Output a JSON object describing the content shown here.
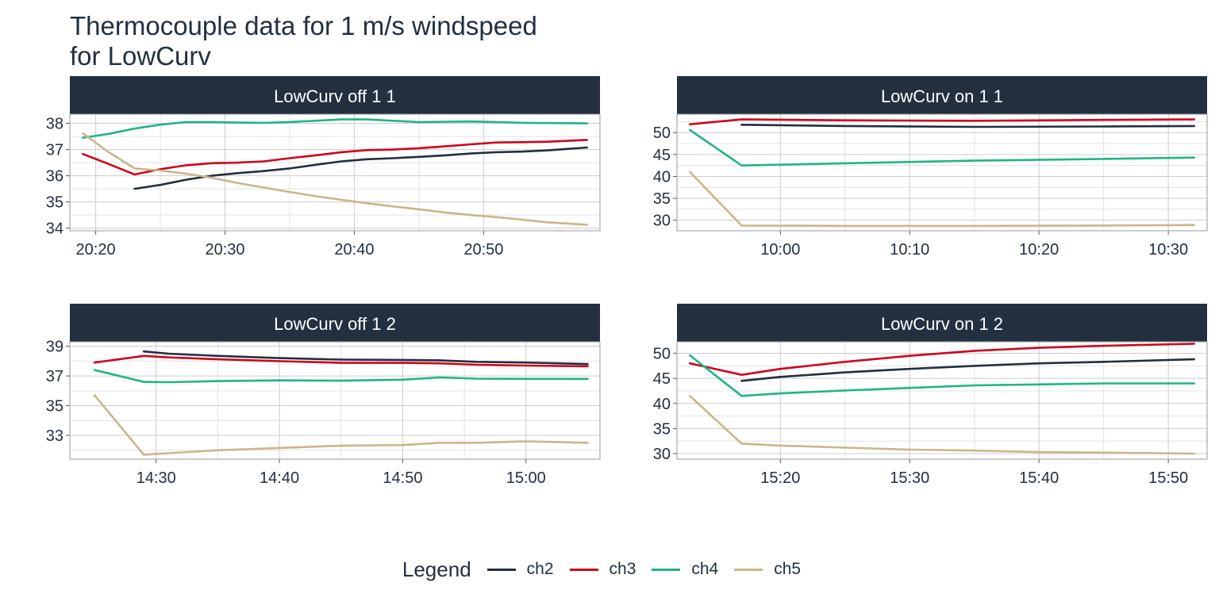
{
  "title": "Thermocouple data for 1 m/s windspeed\nfor LowCurv",
  "legend": {
    "title": "Legend",
    "items": [
      {
        "name": "ch2",
        "color": "#222f3e"
      },
      {
        "name": "ch3",
        "color": "#d0021b"
      },
      {
        "name": "ch4",
        "color": "#1fb589"
      },
      {
        "name": "ch5",
        "color": "#c9b68a"
      }
    ]
  },
  "chart_data": [
    {
      "type": "line",
      "title": "LowCurv off 1 1",
      "xlim": [
        "20:18",
        "20:59"
      ],
      "ylim": [
        33.9,
        38.35
      ],
      "xticks": [
        "20:20",
        "20:30",
        "20:40",
        "20:50"
      ],
      "yticks": [
        34,
        35,
        36,
        37,
        38
      ],
      "series": [
        {
          "name": "ch2",
          "x": [
            "20:23",
            "20:25",
            "20:27",
            "20:29",
            "20:31",
            "20:33",
            "20:35",
            "20:37",
            "20:39",
            "20:41",
            "20:43",
            "20:45",
            "20:47",
            "20:49",
            "20:51",
            "20:53",
            "20:55",
            "20:58"
          ],
          "y": [
            35.5,
            35.65,
            35.85,
            36.0,
            36.1,
            36.18,
            36.28,
            36.42,
            36.55,
            36.63,
            36.67,
            36.72,
            36.78,
            36.85,
            36.9,
            36.92,
            36.97,
            37.08
          ]
        },
        {
          "name": "ch3",
          "x": [
            "20:19",
            "20:21",
            "20:23",
            "20:25",
            "20:27",
            "20:29",
            "20:31",
            "20:33",
            "20:35",
            "20:37",
            "20:39",
            "20:41",
            "20:43",
            "20:45",
            "20:47",
            "20:49",
            "20:51",
            "20:53",
            "20:55",
            "20:58"
          ],
          "y": [
            36.83,
            36.45,
            36.05,
            36.25,
            36.4,
            36.48,
            36.5,
            36.55,
            36.67,
            36.78,
            36.9,
            36.98,
            37.0,
            37.05,
            37.12,
            37.2,
            37.27,
            37.28,
            37.3,
            37.37
          ]
        },
        {
          "name": "ch4",
          "x": [
            "20:19",
            "20:21",
            "20:23",
            "20:25",
            "20:27",
            "20:29",
            "20:31",
            "20:33",
            "20:35",
            "20:37",
            "20:39",
            "20:41",
            "20:43",
            "20:45",
            "20:47",
            "20:49",
            "20:51",
            "20:53",
            "20:55",
            "20:58"
          ],
          "y": [
            37.45,
            37.6,
            37.8,
            37.95,
            38.05,
            38.05,
            38.03,
            38.02,
            38.05,
            38.1,
            38.15,
            38.15,
            38.1,
            38.05,
            38.06,
            38.07,
            38.05,
            38.02,
            38.01,
            38.0
          ]
        },
        {
          "name": "ch5",
          "x": [
            "20:19",
            "20:21",
            "20:23",
            "20:25",
            "20:27",
            "20:29",
            "20:31",
            "20:33",
            "20:35",
            "20:37",
            "20:39",
            "20:41",
            "20:43",
            "20:45",
            "20:47",
            "20:49",
            "20:51",
            "20:53",
            "20:55",
            "20:58"
          ],
          "y": [
            37.62,
            36.9,
            36.28,
            36.2,
            36.08,
            35.92,
            35.72,
            35.55,
            35.38,
            35.22,
            35.08,
            34.95,
            34.83,
            34.72,
            34.6,
            34.5,
            34.42,
            34.32,
            34.22,
            34.13
          ]
        }
      ]
    },
    {
      "type": "line",
      "title": "LowCurv on 1 1",
      "xlim": [
        "09:52",
        "10:33"
      ],
      "ylim": [
        27.6,
        54.2
      ],
      "xticks": [
        "10:00",
        "10:10",
        "10:20",
        "10:30"
      ],
      "yticks": [
        30,
        35,
        40,
        45,
        50
      ],
      "series": [
        {
          "name": "ch2",
          "x": [
            "09:57",
            "10:05",
            "10:15",
            "10:25",
            "10:32"
          ],
          "y": [
            51.8,
            51.5,
            51.3,
            51.4,
            51.5
          ]
        },
        {
          "name": "ch3",
          "x": [
            "09:53",
            "09:57",
            "10:05",
            "10:15",
            "10:25",
            "10:32"
          ],
          "y": [
            51.9,
            53.0,
            52.8,
            52.7,
            52.9,
            53.0
          ]
        },
        {
          "name": "ch4",
          "x": [
            "09:53",
            "09:57",
            "10:05",
            "10:15",
            "10:25",
            "10:32"
          ],
          "y": [
            50.6,
            42.5,
            43.0,
            43.6,
            44.0,
            44.3
          ]
        },
        {
          "name": "ch5",
          "x": [
            "09:53",
            "09:57",
            "10:05",
            "10:15",
            "10:25",
            "10:32"
          ],
          "y": [
            41.0,
            28.8,
            28.7,
            28.7,
            28.8,
            28.9
          ]
        }
      ]
    },
    {
      "type": "line",
      "title": "LowCurv off 1 2",
      "xlim": [
        "14:23",
        "15:06"
      ],
      "ylim": [
        31.4,
        39.3
      ],
      "xticks": [
        "14:30",
        "14:40",
        "14:50",
        "15:00"
      ],
      "yticks": [
        33,
        35,
        37,
        39
      ],
      "series": [
        {
          "name": "ch2",
          "x": [
            "14:29",
            "14:31",
            "14:35",
            "14:40",
            "14:45",
            "14:50",
            "14:53",
            "14:56",
            "15:00",
            "15:05"
          ],
          "y": [
            38.65,
            38.5,
            38.35,
            38.2,
            38.1,
            38.08,
            38.05,
            37.95,
            37.9,
            37.8
          ]
        },
        {
          "name": "ch3",
          "x": [
            "14:25",
            "14:29",
            "14:31",
            "14:35",
            "14:40",
            "14:45",
            "14:50",
            "14:53",
            "14:56",
            "15:00",
            "15:05"
          ],
          "y": [
            37.9,
            38.35,
            38.25,
            38.12,
            38.0,
            37.88,
            37.88,
            37.85,
            37.75,
            37.7,
            37.65
          ]
        },
        {
          "name": "ch4",
          "x": [
            "14:25",
            "14:29",
            "14:31",
            "14:35",
            "14:40",
            "14:45",
            "14:50",
            "14:53",
            "14:56",
            "15:00",
            "15:05"
          ],
          "y": [
            37.4,
            36.6,
            36.58,
            36.65,
            36.7,
            36.68,
            36.75,
            36.9,
            36.82,
            36.8,
            36.8
          ]
        },
        {
          "name": "ch5",
          "x": [
            "14:25",
            "14:29",
            "14:31",
            "14:35",
            "14:40",
            "14:45",
            "14:50",
            "14:53",
            "14:56",
            "15:00",
            "15:05"
          ],
          "y": [
            35.7,
            31.7,
            31.8,
            32.0,
            32.15,
            32.3,
            32.35,
            32.5,
            32.5,
            32.6,
            32.5
          ]
        }
      ]
    },
    {
      "type": "line",
      "title": "LowCurv on 1 2",
      "xlim": [
        "15:12",
        "15:53"
      ],
      "ylim": [
        28.9,
        52.3
      ],
      "xticks": [
        "15:20",
        "15:30",
        "15:40",
        "15:50"
      ],
      "yticks": [
        30,
        35,
        40,
        45,
        50
      ],
      "series": [
        {
          "name": "ch2",
          "x": [
            "15:17",
            "15:20",
            "15:25",
            "15:30",
            "15:35",
            "15:40",
            "15:45",
            "15:52"
          ],
          "y": [
            44.5,
            45.3,
            46.2,
            46.9,
            47.5,
            48.0,
            48.3,
            48.8
          ]
        },
        {
          "name": "ch3",
          "x": [
            "15:13",
            "15:17",
            "15:20",
            "15:25",
            "15:30",
            "15:35",
            "15:40",
            "15:45",
            "15:52"
          ],
          "y": [
            48.0,
            45.7,
            46.9,
            48.3,
            49.5,
            50.5,
            51.1,
            51.5,
            51.9
          ]
        },
        {
          "name": "ch4",
          "x": [
            "15:13",
            "15:17",
            "15:20",
            "15:25",
            "15:30",
            "15:35",
            "15:40",
            "15:45",
            "15:52"
          ],
          "y": [
            49.6,
            41.5,
            42.0,
            42.6,
            43.1,
            43.6,
            43.8,
            44.0,
            44.0
          ]
        },
        {
          "name": "ch5",
          "x": [
            "15:13",
            "15:17",
            "15:20",
            "15:25",
            "15:30",
            "15:35",
            "15:40",
            "15:45",
            "15:52"
          ],
          "y": [
            41.5,
            32.0,
            31.6,
            31.2,
            30.8,
            30.6,
            30.3,
            30.2,
            30.0
          ]
        }
      ]
    }
  ]
}
